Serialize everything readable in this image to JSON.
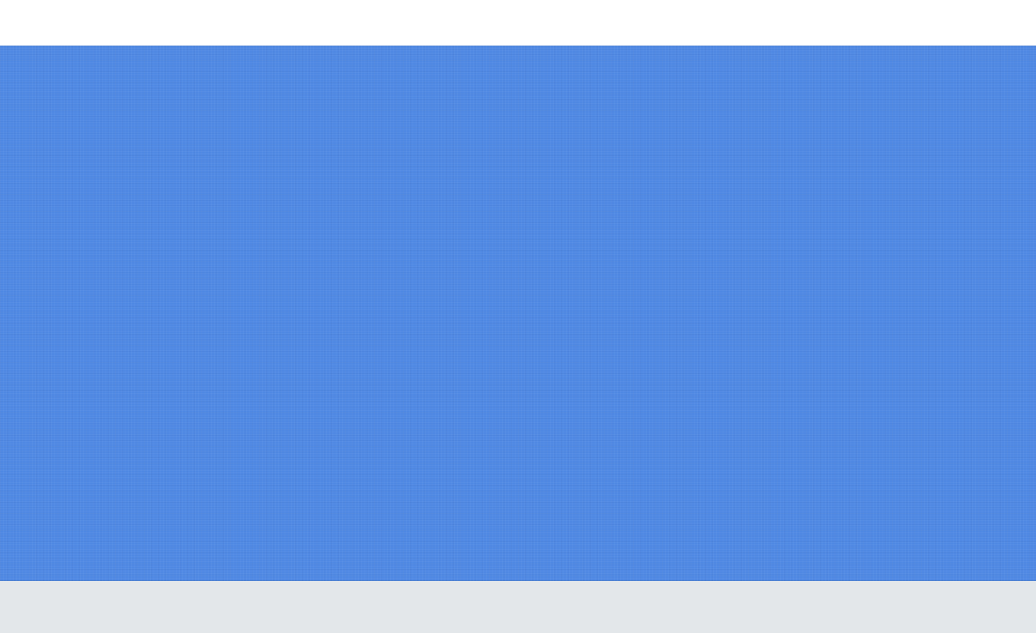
{
  "colors": {
    "top_bar": "#ffffff",
    "hero_background": "#4f88e3",
    "footer_strip": "#e3e7ea"
  },
  "hero": {
    "texture": "linen"
  }
}
